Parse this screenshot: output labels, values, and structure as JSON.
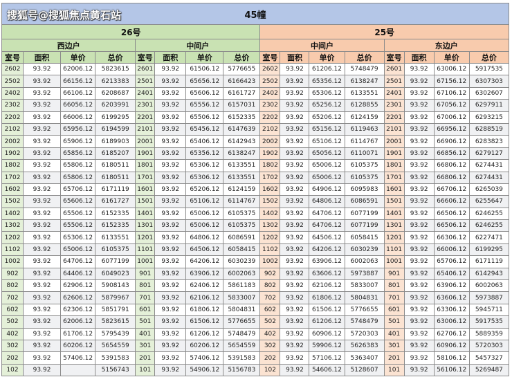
{
  "title": "45幢",
  "buildings": [
    {
      "name": "26号",
      "color": "#c9e2b3",
      "units": [
        "西边户",
        "中间户"
      ]
    },
    {
      "name": "25号",
      "color": "#f8cbad",
      "units": [
        "中间户",
        "东边户"
      ]
    }
  ],
  "column_headers": [
    "室号",
    "面积",
    "单价",
    "总价"
  ],
  "groups": [
    {
      "building": "26号",
      "unit": "西边户",
      "rows": [
        [
          "2602",
          "93.92",
          "62006.12",
          "5823615"
        ],
        [
          "2502",
          "93.92",
          "66156.12",
          "6213383"
        ],
        [
          "2402",
          "93.92",
          "66106.12",
          "6208687"
        ],
        [
          "2302",
          "93.92",
          "66056.12",
          "6203991"
        ],
        [
          "2202",
          "93.92",
          "66006.12",
          "6199295"
        ],
        [
          "2102",
          "93.92",
          "65956.12",
          "6194599"
        ],
        [
          "2002",
          "93.92",
          "65906.12",
          "6189903"
        ],
        [
          "1902",
          "93.92",
          "65856.12",
          "6185207"
        ],
        [
          "1802",
          "93.92",
          "65806.12",
          "6180511"
        ],
        [
          "1702",
          "93.92",
          "65806.12",
          "6180511"
        ],
        [
          "1602",
          "93.92",
          "65706.12",
          "6171119"
        ],
        [
          "1502",
          "93.92",
          "65606.12",
          "6161727"
        ],
        [
          "1402",
          "93.92",
          "65506.12",
          "6152335"
        ],
        [
          "1302",
          "93.92",
          "65506.12",
          "6152335"
        ],
        [
          "1202",
          "93.92",
          "65306.12",
          "6133551"
        ],
        [
          "1102",
          "93.92",
          "65006.12",
          "6105375"
        ],
        [
          "1002",
          "93.92",
          "64706.12",
          "6077199"
        ],
        [
          "902",
          "93.92",
          "64406.12",
          "6049023"
        ],
        [
          "802",
          "93.92",
          "62906.12",
          "5908143"
        ],
        [
          "702",
          "93.92",
          "62606.12",
          "5879967"
        ],
        [
          "602",
          "93.92",
          "62306.12",
          "5851791"
        ],
        [
          "502",
          "93.92",
          "62006.12",
          "5823615"
        ],
        [
          "402",
          "93.92",
          "61706.12",
          "5795439"
        ],
        [
          "302",
          "93.92",
          "60206.12",
          "5654559"
        ],
        [
          "202",
          "93.92",
          "57406.12",
          "5391583"
        ],
        [
          "102",
          "93.92",
          "",
          "5156743"
        ]
      ]
    },
    {
      "building": "26号",
      "unit": "中间户",
      "rows": [
        [
          "2601",
          "93.92",
          "61506.12",
          "5776655"
        ],
        [
          "2501",
          "93.92",
          "65656.12",
          "6166423"
        ],
        [
          "2401",
          "93.92",
          "65606.12",
          "6161727"
        ],
        [
          "2301",
          "93.92",
          "65556.12",
          "6157031"
        ],
        [
          "2201",
          "93.92",
          "65506.12",
          "6152335"
        ],
        [
          "2101",
          "93.92",
          "65456.12",
          "6147639"
        ],
        [
          "2001",
          "93.92",
          "65406.12",
          "6142943"
        ],
        [
          "1901",
          "93.92",
          "65356.12",
          "6138247"
        ],
        [
          "1801",
          "93.92",
          "65306.12",
          "6133551"
        ],
        [
          "1701",
          "93.92",
          "65306.12",
          "6133551"
        ],
        [
          "1601",
          "93.92",
          "65206.12",
          "6124159"
        ],
        [
          "1501",
          "93.92",
          "65106.12",
          "6114767"
        ],
        [
          "1401",
          "93.92",
          "65006.12",
          "6105375"
        ],
        [
          "1301",
          "93.92",
          "65006.12",
          "6105375"
        ],
        [
          "1201",
          "93.92",
          "64806.12",
          "6086591"
        ],
        [
          "1101",
          "93.92",
          "64506.12",
          "6058415"
        ],
        [
          "1001",
          "93.92",
          "64206.12",
          "6030239"
        ],
        [
          "901",
          "93.92",
          "63906.12",
          "6002063"
        ],
        [
          "801",
          "93.92",
          "62406.12",
          "5861183"
        ],
        [
          "701",
          "93.92",
          "62106.12",
          "5833007"
        ],
        [
          "601",
          "93.92",
          "61806.12",
          "5804831"
        ],
        [
          "501",
          "93.92",
          "61506.12",
          "5776655"
        ],
        [
          "401",
          "93.92",
          "61206.12",
          "5748479"
        ],
        [
          "301",
          "93.92",
          "60206.12",
          "5654559"
        ],
        [
          "201",
          "93.92",
          "57406.12",
          "5391583"
        ],
        [
          "101",
          "93.92",
          "54906.12",
          "5156783"
        ]
      ]
    },
    {
      "building": "25号",
      "unit": "中间户",
      "rows": [
        [
          "2602",
          "93.92",
          "61206.12",
          "5748479"
        ],
        [
          "2502",
          "93.92",
          "65356.12",
          "6138247"
        ],
        [
          "2402",
          "93.92",
          "65306.12",
          "6133551"
        ],
        [
          "2302",
          "93.92",
          "65256.12",
          "6128855"
        ],
        [
          "2202",
          "93.92",
          "65206.12",
          "6124159"
        ],
        [
          "2102",
          "93.92",
          "65156.12",
          "6119463"
        ],
        [
          "2002",
          "93.92",
          "65106.12",
          "6114767"
        ],
        [
          "1902",
          "93.92",
          "65056.12",
          "6110071"
        ],
        [
          "1802",
          "93.92",
          "65006.12",
          "6105375"
        ],
        [
          "1702",
          "93.92",
          "65006.12",
          "6105375"
        ],
        [
          "1602",
          "93.92",
          "64906.12",
          "6095983"
        ],
        [
          "1502",
          "93.92",
          "64806.12",
          "6086591"
        ],
        [
          "1402",
          "93.92",
          "64706.12",
          "6077199"
        ],
        [
          "1302",
          "93.92",
          "64706.12",
          "6077199"
        ],
        [
          "1202",
          "93.92",
          "64506.12",
          "6058415"
        ],
        [
          "1102",
          "93.92",
          "64206.12",
          "6030239"
        ],
        [
          "1002",
          "93.92",
          "63906.12",
          "6002063"
        ],
        [
          "902",
          "93.92",
          "63606.12",
          "5973887"
        ],
        [
          "802",
          "93.92",
          "62106.12",
          "5833007"
        ],
        [
          "702",
          "93.92",
          "61806.12",
          "5804831"
        ],
        [
          "602",
          "93.92",
          "61506.12",
          "5776655"
        ],
        [
          "502",
          "93.92",
          "61206.12",
          "5748479"
        ],
        [
          "402",
          "93.92",
          "60906.12",
          "5720303"
        ],
        [
          "302",
          "93.92",
          "59906.12",
          "5626383"
        ],
        [
          "202",
          "93.92",
          "57106.12",
          "5363407"
        ],
        [
          "102",
          "93.92",
          "54606.12",
          "5128607"
        ]
      ]
    },
    {
      "building": "25号",
      "unit": "东边户",
      "rows": [
        [
          "2601",
          "93.92",
          "63006.12",
          "5917535"
        ],
        [
          "2501",
          "93.92",
          "67156.12",
          "6307303"
        ],
        [
          "2401",
          "93.92",
          "67106.12",
          "6302607"
        ],
        [
          "2301",
          "93.92",
          "67056.12",
          "6297911"
        ],
        [
          "2201",
          "93.92",
          "67006.12",
          "6293215"
        ],
        [
          "2101",
          "93.92",
          "66956.12",
          "6288519"
        ],
        [
          "2001",
          "93.92",
          "66906.12",
          "6283823"
        ],
        [
          "1901",
          "93.92",
          "66856.12",
          "6279127"
        ],
        [
          "1801",
          "93.92",
          "66806.12",
          "6274431"
        ],
        [
          "1701",
          "93.92",
          "66806.12",
          "6274431"
        ],
        [
          "1601",
          "93.92",
          "66706.12",
          "6265039"
        ],
        [
          "1501",
          "93.92",
          "66606.12",
          "6255647"
        ],
        [
          "1401",
          "93.92",
          "66506.12",
          "6246255"
        ],
        [
          "1301",
          "93.92",
          "66506.12",
          "6246255"
        ],
        [
          "1201",
          "93.92",
          "66306.12",
          "6227471"
        ],
        [
          "1101",
          "93.92",
          "66006.12",
          "6199295"
        ],
        [
          "1001",
          "93.92",
          "65706.12",
          "6171119"
        ],
        [
          "901",
          "93.92",
          "65406.12",
          "6142943"
        ],
        [
          "801",
          "93.92",
          "63906.12",
          "6002063"
        ],
        [
          "701",
          "93.92",
          "63606.12",
          "5973887"
        ],
        [
          "601",
          "93.92",
          "63306.12",
          "5945711"
        ],
        [
          "501",
          "93.92",
          "63006.12",
          "5917535"
        ],
        [
          "401",
          "93.92",
          "62706.12",
          "5889359"
        ],
        [
          "301",
          "93.92",
          "60906.12",
          "5720303"
        ],
        [
          "201",
          "93.92",
          "58106.12",
          "5457327"
        ],
        [
          "101",
          "93.92",
          "56106.12",
          "5269487"
        ]
      ]
    }
  ],
  "watermark": "搜狐号@搜狐焦点黄石站"
}
